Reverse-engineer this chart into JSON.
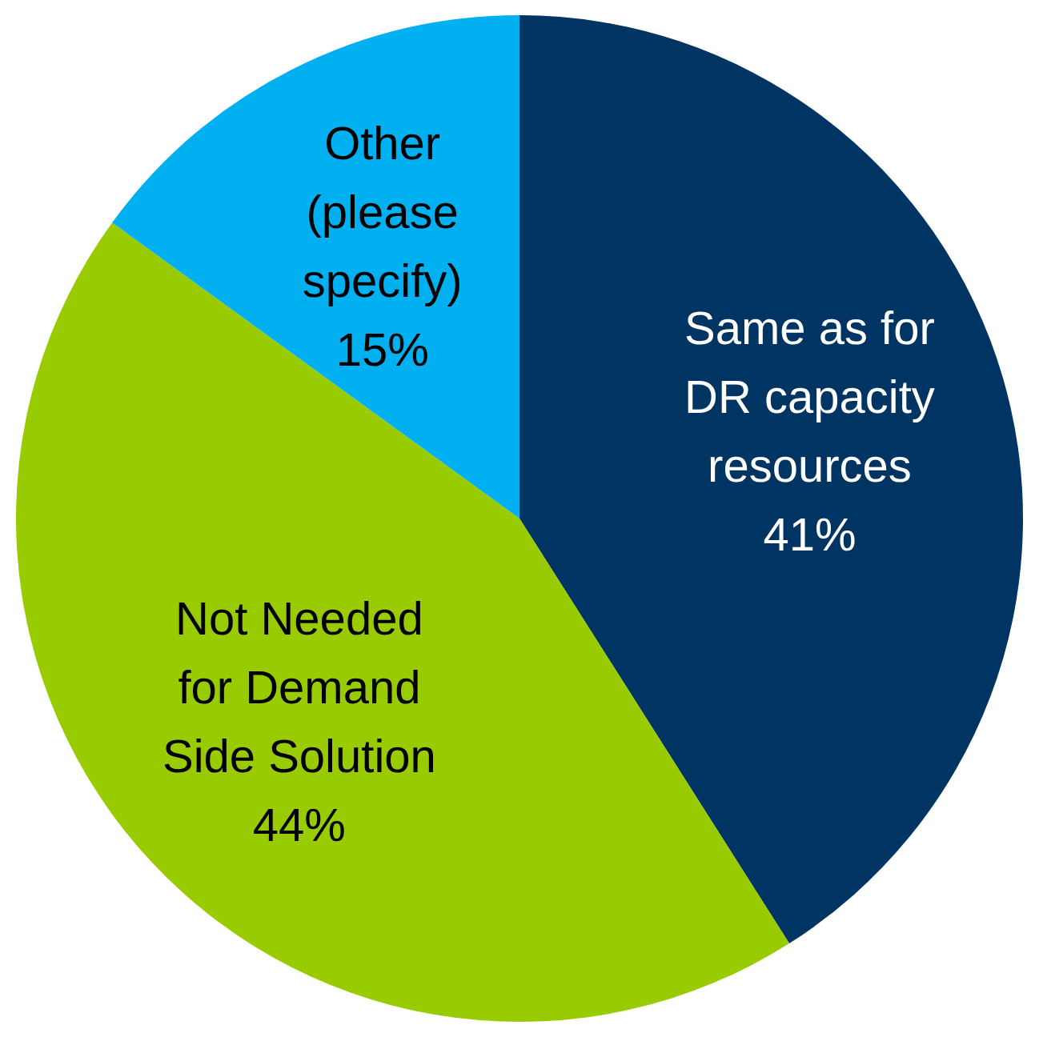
{
  "chart_data": {
    "type": "pie",
    "categories": [
      "Same as for DR capacity resources",
      "Not Needed for Demand Side Solution",
      "Other (please specify)"
    ],
    "values": [
      41,
      44,
      15
    ],
    "colors": [
      "#003462",
      "#99cc00",
      "#00b0f0"
    ],
    "value_labels": [
      "41%",
      "44%",
      "15%"
    ],
    "legend": false
  }
}
